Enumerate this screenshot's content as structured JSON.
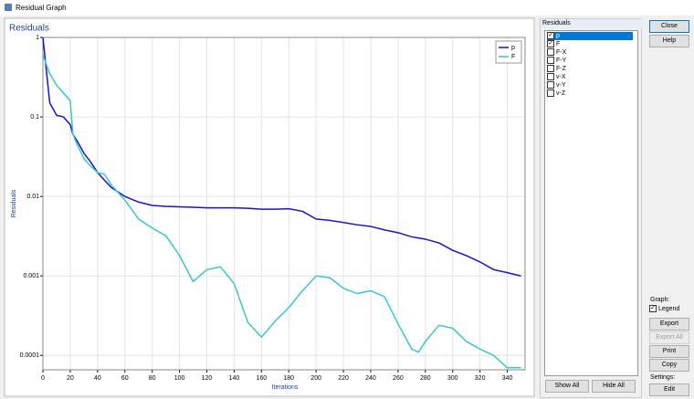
{
  "window": {
    "title": "Residual Graph"
  },
  "chart_data": {
    "type": "line",
    "title": "Residuals",
    "x_label": "Iterations",
    "y_label": "Residuals",
    "x": [
      0,
      5,
      10,
      15,
      20,
      22,
      25,
      30,
      35,
      40,
      45,
      50,
      60,
      70,
      80,
      90,
      100,
      110,
      120,
      130,
      140,
      150,
      160,
      170,
      180,
      190,
      200,
      210,
      220,
      230,
      240,
      250,
      260,
      270,
      275,
      280,
      290,
      300,
      310,
      320,
      330,
      340,
      350
    ],
    "series": [
      {
        "name": "p",
        "color": "#1414d2",
        "values": [
          1,
          0.15,
          0.105,
          0.1,
          0.08,
          0.06,
          0.05,
          0.035,
          0.027,
          0.02,
          0.016,
          0.013,
          0.01,
          0.0085,
          0.0077,
          0.0075,
          0.0074,
          0.0073,
          0.0072,
          0.0072,
          0.0072,
          0.0071,
          0.0069,
          0.0069,
          0.007,
          0.0065,
          0.0052,
          0.005,
          0.0047,
          0.0044,
          0.0042,
          0.0038,
          0.0035,
          0.0031,
          0.003,
          0.0029,
          0.0026,
          0.0021,
          0.0018,
          0.0015,
          0.0012,
          0.0011,
          0.001
        ]
      },
      {
        "name": "F",
        "color": "#3cc8c8",
        "values": [
          0.6,
          0.35,
          0.25,
          0.2,
          0.16,
          0.06,
          0.045,
          0.03,
          0.024,
          0.02,
          0.019,
          0.014,
          0.009,
          0.0052,
          0.004,
          0.0032,
          0.0018,
          0.00085,
          0.0012,
          0.0013,
          0.0008,
          0.00026,
          0.00017,
          0.00027,
          0.0004,
          0.00065,
          0.001,
          0.00095,
          0.0007,
          0.0006,
          0.00065,
          0.00055,
          0.00025,
          0.00012,
          0.00011,
          0.00015,
          0.00024,
          0.00022,
          0.00015,
          0.00012,
          0.0001,
          7e-05,
          7e-05
        ]
      }
    ],
    "xlim": [
      0,
      353
    ],
    "xticks": [
      0,
      20,
      40,
      60,
      80,
      100,
      120,
      140,
      160,
      180,
      200,
      220,
      240,
      260,
      280,
      300,
      320,
      340
    ],
    "ylim": [
      6.6e-05,
      1
    ],
    "yticks": [
      0.0001,
      0.001,
      0.01,
      0.1,
      1
    ],
    "log_y": true,
    "grid": true,
    "legend": "top-right"
  },
  "residuals_panel": {
    "title": "Residuals",
    "items": [
      {
        "label": "p",
        "checked": true,
        "selected": true
      },
      {
        "label": "F",
        "checked": true,
        "selected": false
      },
      {
        "label": "F-X",
        "checked": false,
        "selected": false
      },
      {
        "label": "F-Y",
        "checked": false,
        "selected": false
      },
      {
        "label": "F-Z",
        "checked": false,
        "selected": false
      },
      {
        "label": "v-X",
        "checked": false,
        "selected": false
      },
      {
        "label": "v-Y",
        "checked": false,
        "selected": false
      },
      {
        "label": "v-Z",
        "checked": false,
        "selected": false
      }
    ],
    "show_all": "Show All",
    "hide_all": "Hide All"
  },
  "side": {
    "close": "Close",
    "help": "Help",
    "graph_label": "Graph:",
    "legend": {
      "label": "Legend",
      "checked": true
    },
    "export": "Export",
    "export_all": "Export All",
    "print": "Print",
    "copy": "Copy",
    "settings_label": "Settings:",
    "edit": "Edit"
  }
}
